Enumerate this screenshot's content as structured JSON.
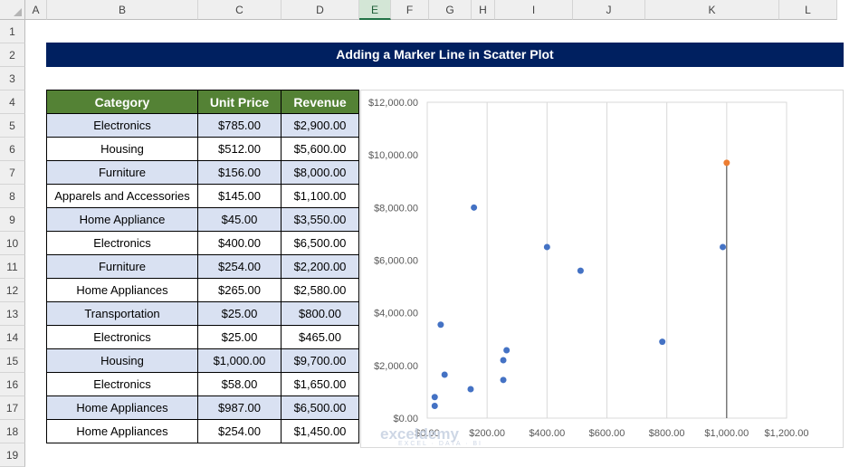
{
  "columns": [
    "A",
    "B",
    "C",
    "D",
    "E",
    "F",
    "G",
    "H",
    "I",
    "J",
    "K",
    "L"
  ],
  "selected_column": "E",
  "rows": [
    "1",
    "2",
    "3",
    "4",
    "5",
    "6",
    "7",
    "8",
    "9",
    "10",
    "11",
    "12",
    "13",
    "14",
    "15",
    "16",
    "17",
    "18",
    "19"
  ],
  "title": "Adding a Marker Line in Scatter Plot",
  "table": {
    "headers": [
      "Category",
      "Unit Price",
      "Revenue"
    ],
    "rows": [
      [
        "Electronics",
        "$785.00",
        "$2,900.00"
      ],
      [
        "Housing",
        "$512.00",
        "$5,600.00"
      ],
      [
        "Furniture",
        "$156.00",
        "$8,000.00"
      ],
      [
        "Apparels and Accessories",
        "$145.00",
        "$1,100.00"
      ],
      [
        "Home Appliance",
        "$45.00",
        "$3,550.00"
      ],
      [
        "Electronics",
        "$400.00",
        "$6,500.00"
      ],
      [
        "Furniture",
        "$254.00",
        "$2,200.00"
      ],
      [
        "Home Appliances",
        "$265.00",
        "$2,580.00"
      ],
      [
        "Transportation",
        "$25.00",
        "$800.00"
      ],
      [
        "Electronics",
        "$25.00",
        "$465.00"
      ],
      [
        "Housing",
        "$1,000.00",
        "$9,700.00"
      ],
      [
        "Electronics",
        "$58.00",
        "$1,650.00"
      ],
      [
        "Home Appliances",
        "$987.00",
        "$6,500.00"
      ],
      [
        "Home Appliances",
        "$254.00",
        "$1,450.00"
      ]
    ]
  },
  "chart_data": {
    "type": "scatter",
    "x_tick_labels": [
      "$0.00",
      "$200.00",
      "$400.00",
      "$600.00",
      "$800.00",
      "$1,000.00",
      "$1,200.00"
    ],
    "y_tick_labels": [
      "$0.00",
      "$2,000.00",
      "$4,000.00",
      "$6,000.00",
      "$8,000.00",
      "$10,000.00",
      "$12,000.00"
    ],
    "xlim": [
      0,
      1200
    ],
    "ylim": [
      0,
      12000
    ],
    "grid": "vertical",
    "series": [
      {
        "color": "#4472c4",
        "points": [
          [
            785,
            2900
          ],
          [
            512,
            5600
          ],
          [
            156,
            8000
          ],
          [
            145,
            1100
          ],
          [
            45,
            3550
          ],
          [
            400,
            6500
          ],
          [
            254,
            2200
          ],
          [
            265,
            2580
          ],
          [
            25,
            800
          ],
          [
            25,
            465
          ],
          [
            58,
            1650
          ],
          [
            987,
            6500
          ],
          [
            254,
            1450
          ]
        ]
      },
      {
        "color": "#ed7d31",
        "points": [
          [
            1000,
            9700
          ]
        ],
        "marker_line": true
      }
    ]
  },
  "watermark": {
    "name": "exceldemy",
    "tagline": "EXCEL · DATA · BI"
  }
}
